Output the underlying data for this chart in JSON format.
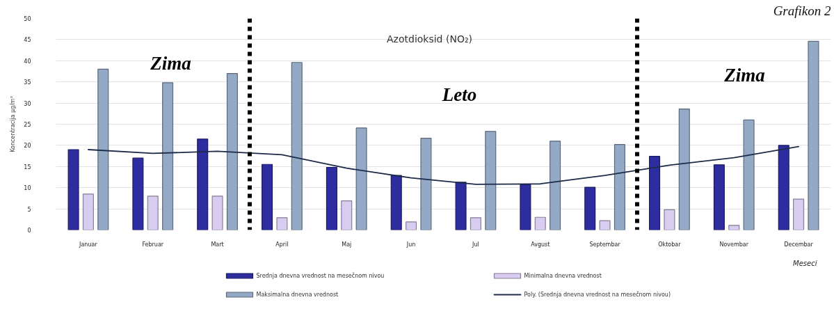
{
  "chart_data": {
    "type": "bar",
    "title": "Azotdioksid (NO₂)",
    "xlabel": "Meseci",
    "ylabel": "Koncentracija μg/m³",
    "annotations": [
      "Zima",
      "Leto",
      "Zima",
      "Grafikon 2"
    ],
    "categories": [
      "Januar",
      "Februar",
      "Mart",
      "April",
      "Maj",
      "Jun",
      "Jul",
      "Avgust",
      "Septembar",
      "Oktobar",
      "Novembar",
      "Decembar"
    ],
    "series": [
      {
        "name": "Srednja dnevna vrednost na mesečnom nivou",
        "color": "#2d2da0",
        "values": [
          19.0,
          17.0,
          21.5,
          15.5,
          14.8,
          12.9,
          11.3,
          10.7,
          10.1,
          17.4,
          15.4,
          20.0
        ]
      },
      {
        "name": "Minimalna dnevna vrednost",
        "color": "#d8cdf0",
        "values": [
          8.5,
          8.0,
          8.0,
          2.9,
          6.9,
          1.9,
          2.9,
          3.0,
          2.2,
          4.8,
          1.1,
          7.3
        ]
      },
      {
        "name": "Maksimalna dnevna vrednost",
        "color": "#93a9c6",
        "values": [
          38.0,
          34.8,
          37.0,
          39.6,
          24.1,
          21.7,
          23.3,
          21.0,
          20.2,
          28.6,
          26.0,
          44.6
        ]
      },
      {
        "name": "Poly. (Srednja dnevna vrednost na mesečnom nivou)",
        "type": "line",
        "color": "#1c2b48",
        "values": [
          19.0,
          18.1,
          18.6,
          17.8,
          14.6,
          12.3,
          10.8,
          10.9,
          12.9,
          15.3,
          17.1,
          19.7
        ]
      }
    ],
    "ylim": [
      0,
      50
    ],
    "yticks": [
      0,
      5,
      10,
      15,
      20,
      25,
      30,
      35,
      40,
      45,
      50
    ],
    "grid": "y",
    "legend": "bottom"
  }
}
